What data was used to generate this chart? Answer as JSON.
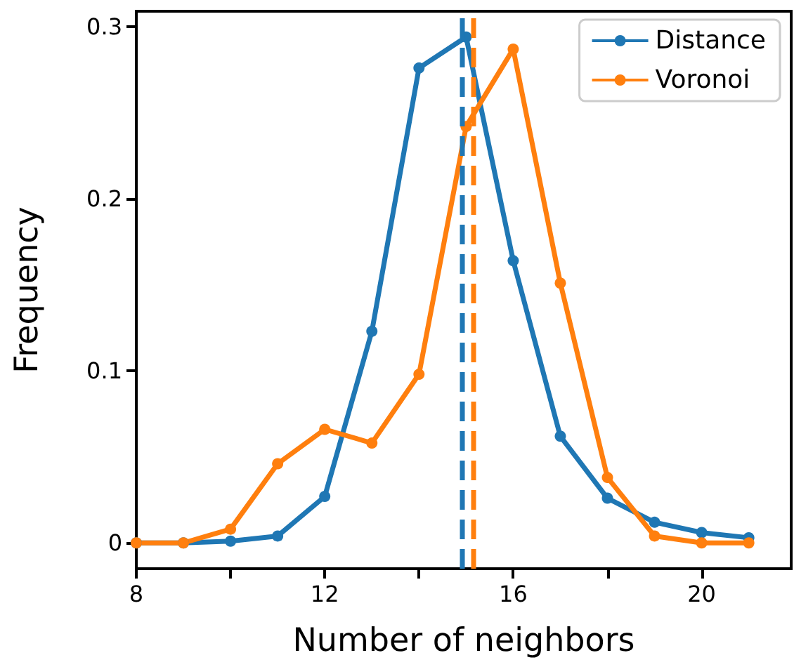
{
  "chart_data": {
    "type": "line",
    "xlabel": "Number of neighbors",
    "ylabel": "Frequency",
    "x": [
      8,
      9,
      10,
      11,
      12,
      13,
      14,
      15,
      16,
      17,
      18,
      19,
      20,
      21
    ],
    "series": [
      {
        "name": "Distance",
        "color": "#1f77b4",
        "values": [
          0,
          0,
          0.001,
          0.004,
          0.027,
          0.123,
          0.276,
          0.294,
          0.164,
          0.062,
          0.026,
          0.012,
          0.006,
          0.003
        ]
      },
      {
        "name": "Voronoi",
        "color": "#ff7f0e",
        "values": [
          0,
          0,
          0.008,
          0.046,
          0.066,
          0.058,
          0.098,
          0.242,
          0.287,
          0.151,
          0.038,
          0.004,
          0,
          0
        ]
      }
    ],
    "ref_lines": [
      {
        "axis": "x",
        "value": 14.9,
        "color": "#1f77b4",
        "line_style": "dashed"
      },
      {
        "axis": "x",
        "value": 15.15,
        "color": "#ff7f0e",
        "line_style": "dashed"
      }
    ],
    "marker": "circle",
    "line_style": "solid",
    "xlim": [
      8,
      21.9
    ],
    "xticks": [
      8,
      {
        "value": 10,
        "label": null
      },
      12,
      {
        "value": 14,
        "label": null
      },
      16,
      {
        "value": 18,
        "label": null
      },
      20
    ],
    "ylim": [
      -0.015,
      0.309
    ],
    "yticks": [
      0,
      0.1,
      0.2,
      0.3
    ],
    "grid": false,
    "legend": "top right"
  }
}
